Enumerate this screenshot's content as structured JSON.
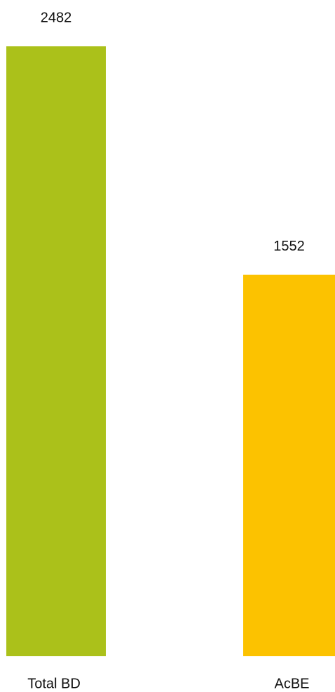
{
  "chart_data": {
    "type": "bar",
    "categories": [
      "Total BD",
      "AcBE"
    ],
    "values": [
      2482,
      1552
    ],
    "colors": [
      "#abc11a",
      "#fcc200"
    ]
  }
}
